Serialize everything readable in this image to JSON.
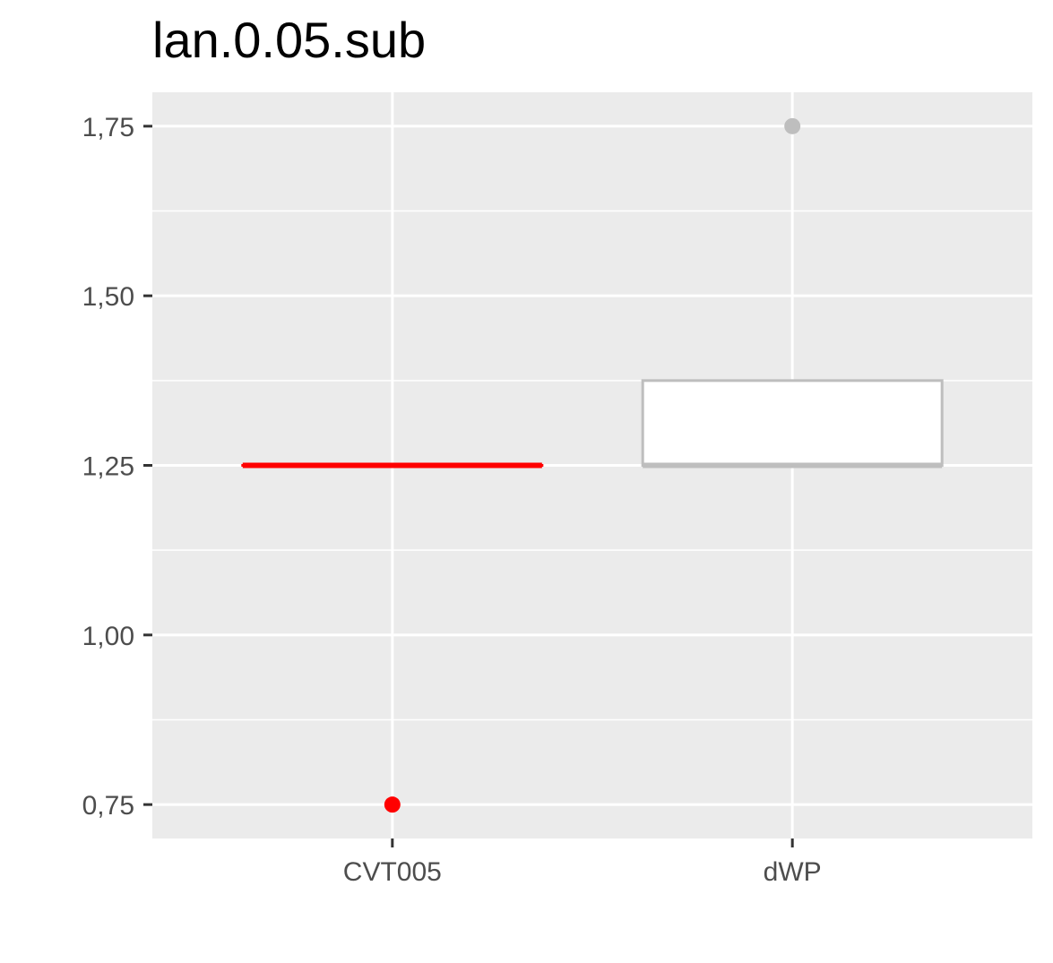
{
  "chart_data": {
    "type": "boxplot",
    "title": "lan.0.05.sub",
    "xlabel": "",
    "ylabel": "",
    "categories": [
      "CVT005",
      "dWP"
    ],
    "ylim": [
      0.7,
      1.8
    ],
    "y_ticks": [
      0.75,
      1.0,
      1.25,
      1.5,
      1.75
    ],
    "y_tick_labels": [
      "0,75",
      "1,00",
      "1,25",
      "1,50",
      "1,75"
    ],
    "grid": true,
    "boxes": [
      {
        "category": "CVT005",
        "q1": 1.25,
        "median": 1.25,
        "q3": 1.25,
        "whisker_low": 1.25,
        "whisker_high": 1.25,
        "outliers": [
          0.75
        ],
        "color": "#ff0000"
      },
      {
        "category": "dWP",
        "q1": 1.25,
        "median": 1.25,
        "q3": 1.375,
        "whisker_low": 1.25,
        "whisker_high": 1.375,
        "outliers": [
          1.75
        ],
        "color": "#bebebe"
      }
    ],
    "colors": {
      "panel_background": "#ebebeb",
      "grid": "#ffffff",
      "tick_text": "#4d4d4d",
      "tick_mark": "#333333"
    }
  }
}
